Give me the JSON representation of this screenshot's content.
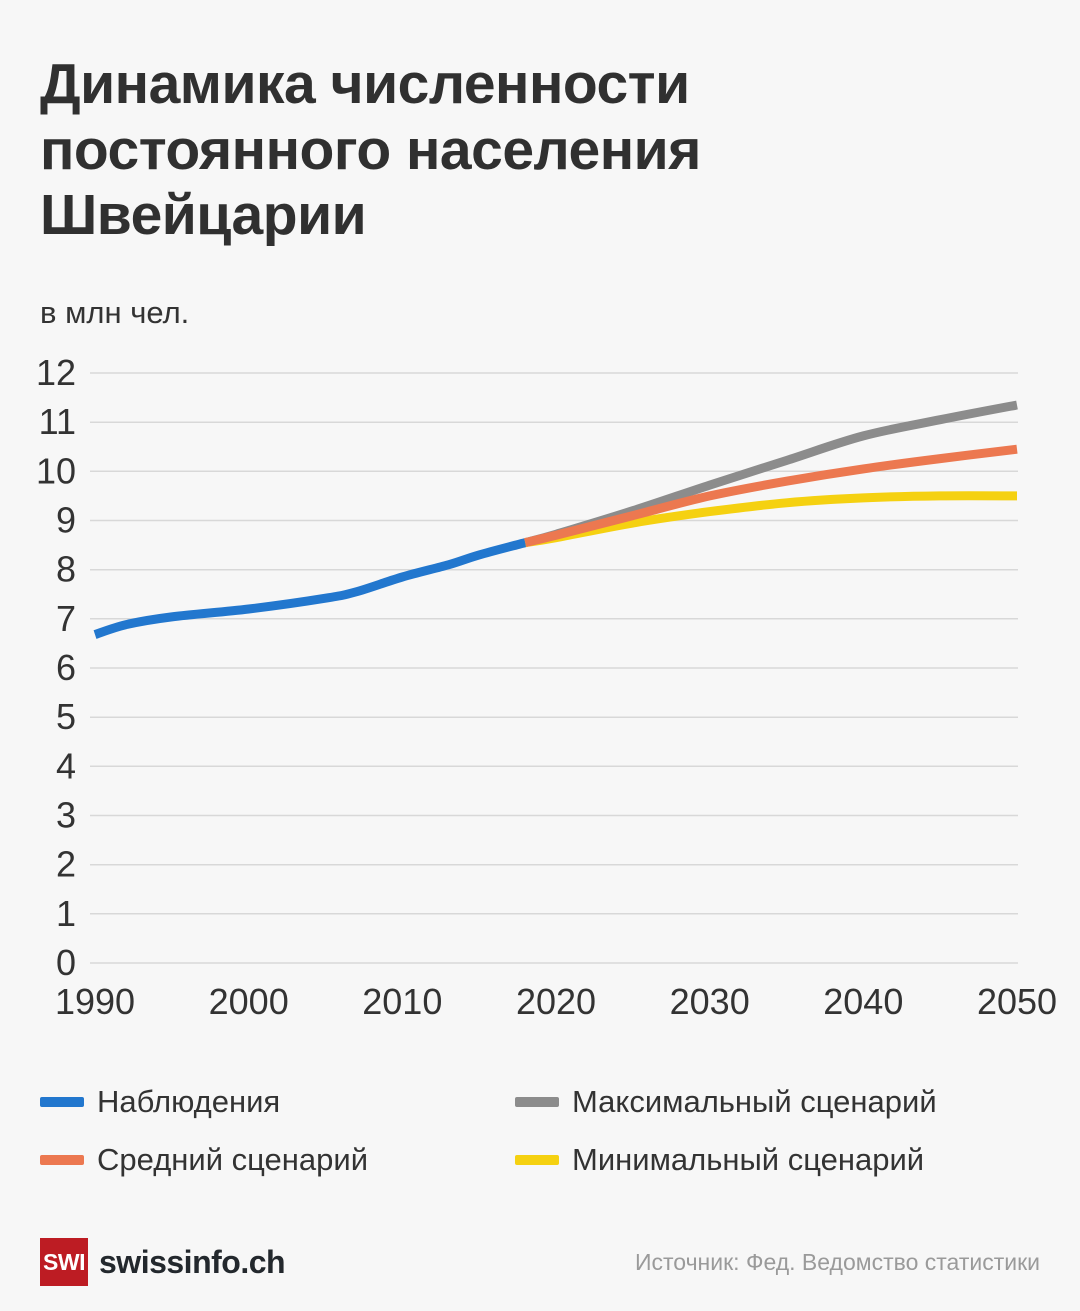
{
  "chart_data": {
    "type": "line",
    "title": "Динамика численности\nпостоянного населения\nШвейцарии",
    "subtitle": "в млн чел.",
    "unit": "млн чел.",
    "xlim": [
      1990,
      2050
    ],
    "ylim": [
      0,
      12
    ],
    "x_ticks": [
      1990,
      2000,
      2010,
      2020,
      2030,
      2040,
      2050
    ],
    "y_ticks": [
      0,
      1,
      2,
      3,
      4,
      5,
      6,
      7,
      8,
      9,
      10,
      11,
      12
    ],
    "grid": "horizontal",
    "grid_color": "#d8d8d8",
    "legend_position": "bottom",
    "series": [
      {
        "name": "Наблюдения",
        "color": "#2277ce",
        "points": [
          [
            1990,
            6.68
          ],
          [
            1992,
            6.88
          ],
          [
            1995,
            7.04
          ],
          [
            2000,
            7.2
          ],
          [
            2005,
            7.42
          ],
          [
            2007,
            7.55
          ],
          [
            2010,
            7.85
          ],
          [
            2013,
            8.1
          ],
          [
            2015,
            8.3
          ],
          [
            2018,
            8.55
          ]
        ]
      },
      {
        "name": "Максимальный сценарий",
        "color": "#8c8c8c",
        "points": [
          [
            2018,
            8.55
          ],
          [
            2020,
            8.72
          ],
          [
            2025,
            9.2
          ],
          [
            2030,
            9.72
          ],
          [
            2035,
            10.22
          ],
          [
            2040,
            10.72
          ],
          [
            2045,
            11.05
          ],
          [
            2050,
            11.35
          ]
        ]
      },
      {
        "name": "Минимальный сценарий",
        "color": "#f5d111",
        "points": [
          [
            2018,
            8.55
          ],
          [
            2020,
            8.65
          ],
          [
            2025,
            8.95
          ],
          [
            2030,
            9.18
          ],
          [
            2035,
            9.36
          ],
          [
            2040,
            9.46
          ],
          [
            2045,
            9.5
          ],
          [
            2050,
            9.5
          ]
        ]
      },
      {
        "name": "Средний сценарий",
        "color": "#ec7850",
        "points": [
          [
            2018,
            8.55
          ],
          [
            2020,
            8.7
          ],
          [
            2025,
            9.1
          ],
          [
            2030,
            9.5
          ],
          [
            2035,
            9.8
          ],
          [
            2040,
            10.05
          ],
          [
            2045,
            10.26
          ],
          [
            2050,
            10.45
          ]
        ]
      }
    ]
  },
  "legend": {
    "items": [
      {
        "label": "Наблюдения",
        "color": "#2277ce"
      },
      {
        "label": "Средний сценарий",
        "color": "#ec7850"
      },
      {
        "label": "Максимальный сценарий",
        "color": "#8c8c8c"
      },
      {
        "label": "Минимальный сценарий",
        "color": "#f5d111"
      }
    ]
  },
  "footer": {
    "logo_text": "SWI",
    "logo_color": "#bd1c23",
    "brand": "swissinfo.ch",
    "source": "Источник: Фед. Ведомство статистики"
  }
}
